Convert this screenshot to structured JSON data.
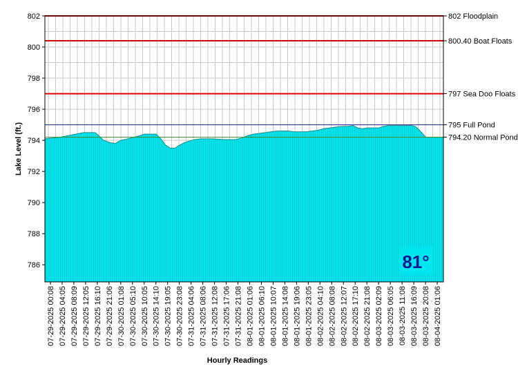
{
  "chart_data": {
    "type": "area",
    "xlabel": "Hourly Readings",
    "ylabel": "Lake Level (ft.)",
    "ylim": [
      784.9,
      802
    ],
    "yticks": [
      786,
      788,
      790,
      792,
      794,
      796,
      798,
      800,
      802
    ],
    "xticks": [
      "07-29-2025 00:08",
      "07-29-2025 04:05",
      "07-29-2025 08:09",
      "07-29-2025 12:05",
      "07-29-2025 16:10",
      "07-29-2025 21:06",
      "07-30-2025 01:08",
      "07-30-2025 05:10",
      "07-30-2025 10:05",
      "07-30-2025 14:10",
      "07-30-2025 19:05",
      "07-30-2025 23:08",
      "07-31-2025 04:06",
      "07-31-2025 08:06",
      "07-31-2025 12:08",
      "07-31-2025 17:06",
      "07-31-2025 21:08",
      "08-01-2025 01:06",
      "08-01-2025 06:10",
      "08-01-2025 10:07",
      "08-01-2025 14:08",
      "08-01-2025 19:06",
      "08-01-2025 23:05",
      "08-02-2025 04:10",
      "08-02-2025 08:08",
      "08-02-2025 12:07",
      "08-02-2025 17:10",
      "08-02-2025 21:08",
      "08-03-2025 02:09",
      "08-03-2025 06:05",
      "08-03-2025 11:08",
      "08-03-2025 16:09",
      "08-03-2025 20:08",
      "08-04-2025 01:06"
    ],
    "grid": true,
    "fill_color": "#00e5ee",
    "outline_color": "#1a8a8a",
    "reference_lines": [
      {
        "value": 802,
        "label": "802 Floodplain",
        "color": "#d40000"
      },
      {
        "value": 800.4,
        "label": "800.40 Boat Floats",
        "color": "#d40000"
      },
      {
        "value": 797,
        "label": "797 Sea Doo Floats",
        "color": "#d40000"
      },
      {
        "value": 795,
        "label": "795 Full Pond",
        "color": "#1f2a8c"
      },
      {
        "value": 794.2,
        "label": "794.20 Normal Pond",
        "color": "#2e8b2e"
      }
    ],
    "series": [
      {
        "x": [
          0,
          1,
          2,
          3,
          3.5,
          4,
          4.3,
          4.7,
          5.3,
          5.7,
          6.2,
          6.8,
          7.3,
          7.8,
          8.2,
          8.8,
          9.2,
          9.6,
          10,
          10.4,
          10.8,
          11.2,
          11.6,
          12,
          12.5,
          13,
          14,
          15,
          16,
          16.5,
          17,
          17.5,
          18,
          18.5,
          19,
          19.5,
          20,
          20.5,
          21,
          21.5,
          22,
          22.5,
          23,
          23.5,
          24,
          24.5,
          25,
          25.5,
          26,
          26.4,
          26.8,
          27.2,
          27.8,
          28.2,
          28.6,
          29,
          29.5,
          30,
          30.5,
          31,
          31.3,
          31.6,
          31.9,
          32.2,
          32.6,
          33,
          33.3
        ],
        "y": [
          794.1,
          794.2,
          794.35,
          794.5,
          794.5,
          794.5,
          794.3,
          794,
          793.85,
          793.8,
          794,
          794.1,
          794.2,
          794.3,
          794.4,
          794.4,
          794.4,
          794.1,
          793.7,
          793.5,
          793.5,
          793.7,
          793.85,
          793.95,
          794.05,
          794.1,
          794.1,
          794.05,
          794.05,
          794.15,
          794.3,
          794.4,
          794.45,
          794.5,
          794.55,
          794.6,
          794.6,
          794.6,
          794.55,
          794.55,
          794.55,
          794.6,
          794.65,
          794.75,
          794.8,
          794.85,
          794.9,
          794.9,
          794.95,
          794.8,
          794.75,
          794.8,
          794.8,
          794.8,
          794.9,
          794.95,
          794.95,
          794.95,
          794.95,
          794.95,
          794.9,
          794.7,
          794.45,
          794.2,
          794.2,
          794.2,
          794.2
        ]
      }
    ]
  },
  "temperature": {
    "text": "81°",
    "color": "#0a1a8c",
    "background": "#00e5ee"
  }
}
